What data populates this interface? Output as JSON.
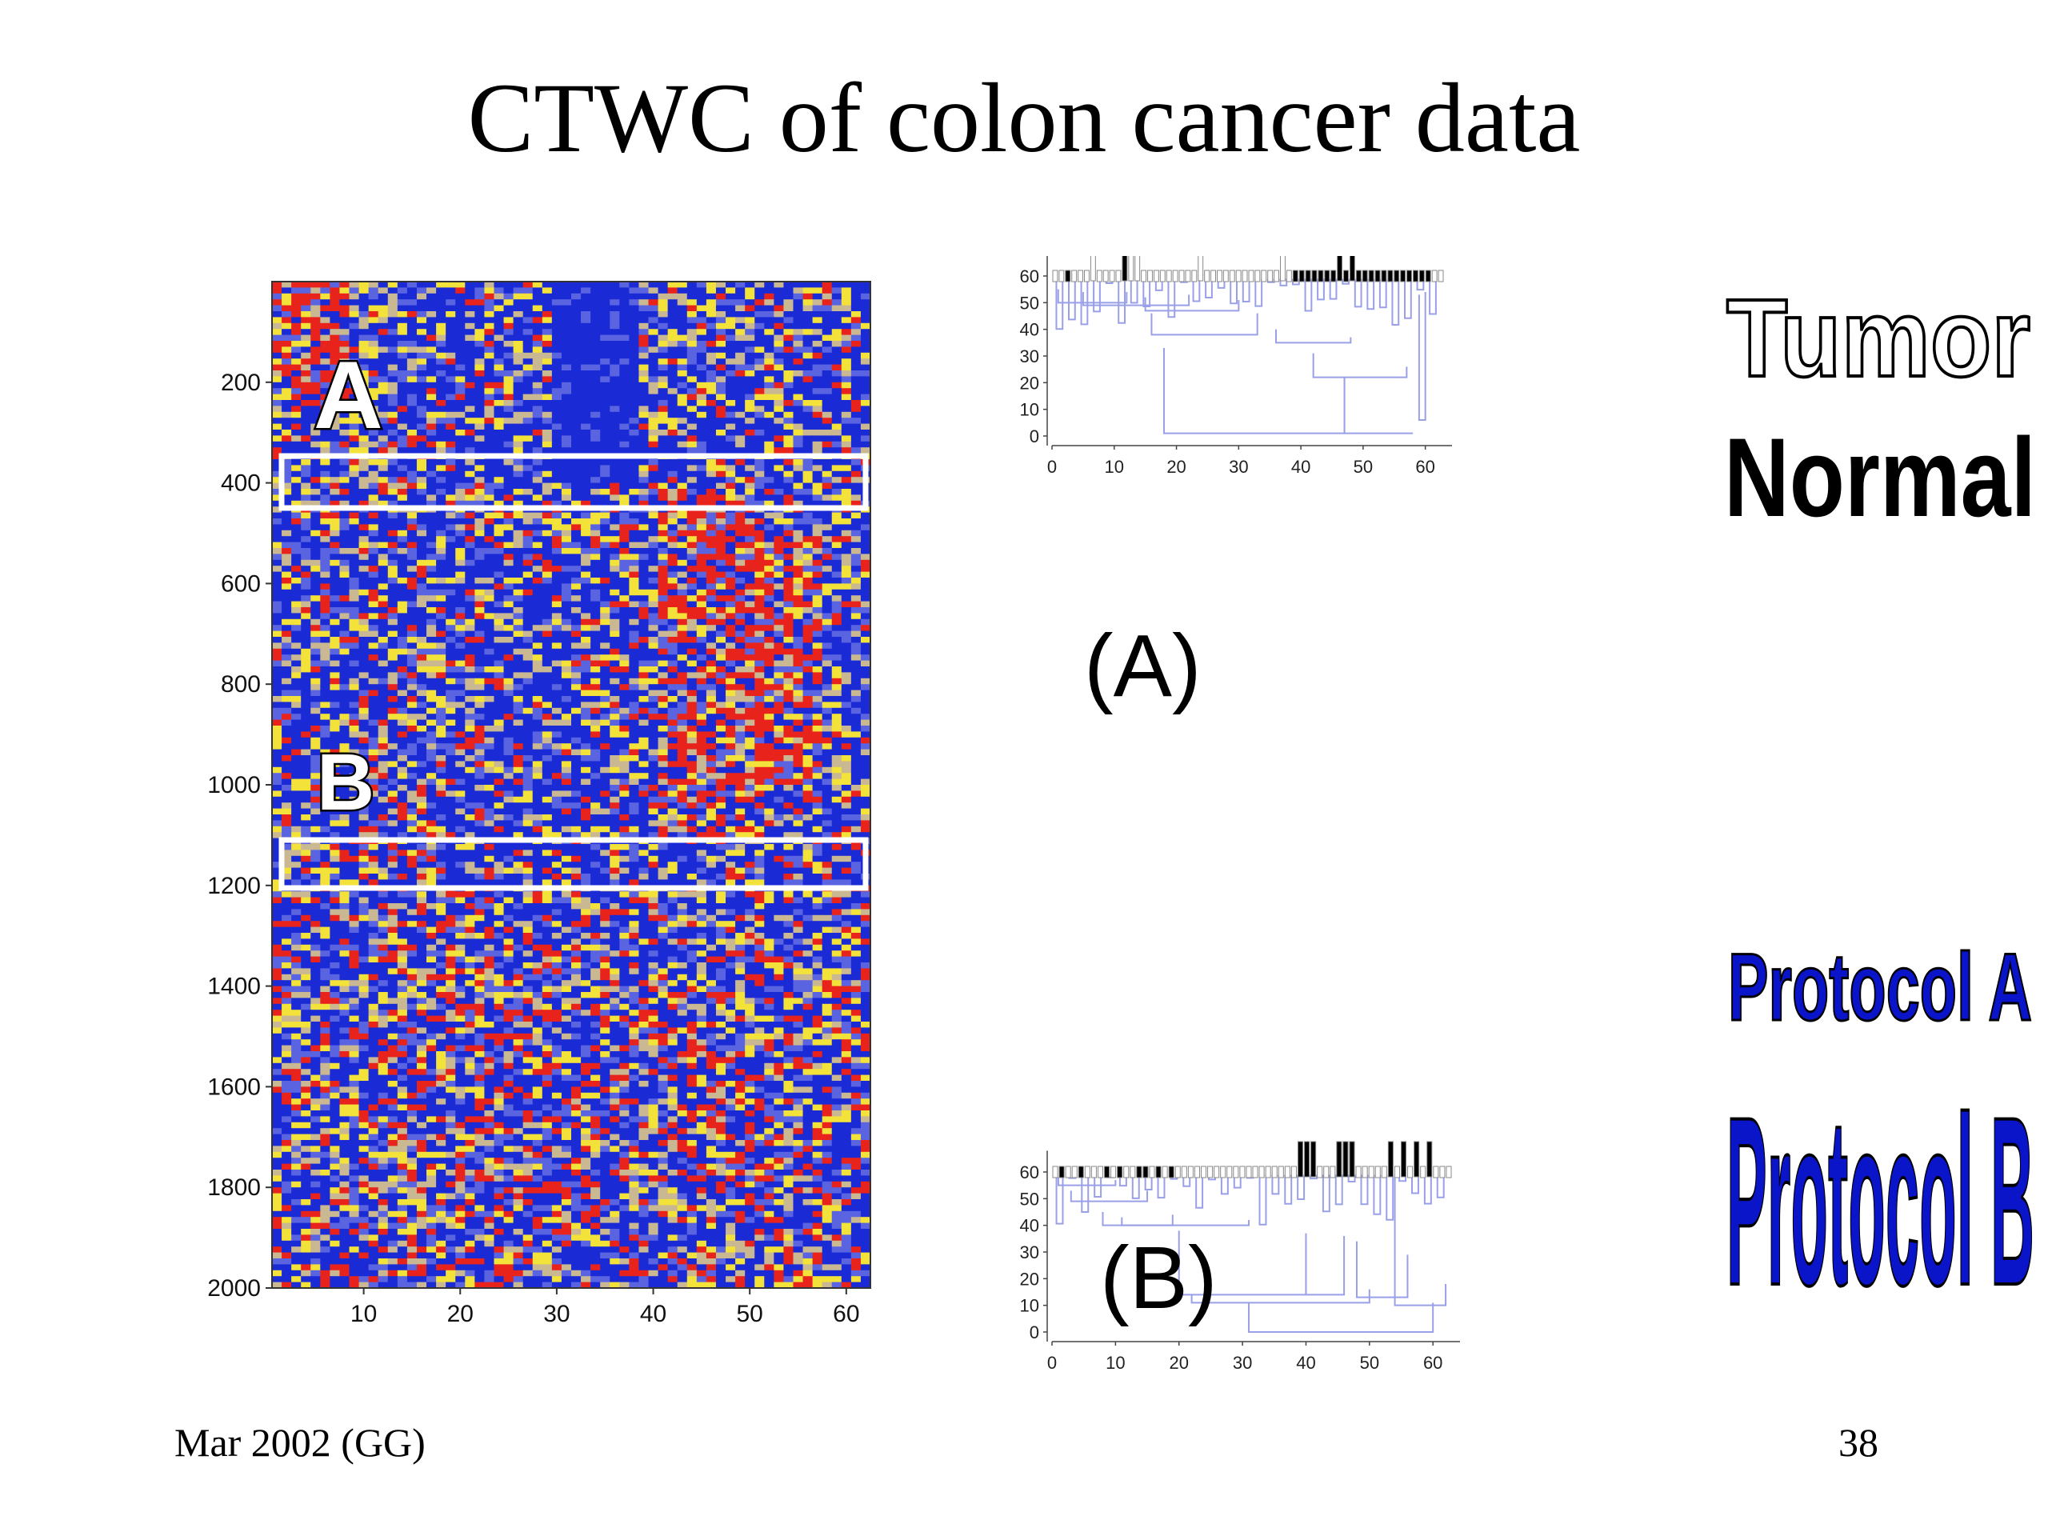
{
  "slide": {
    "title": "CTWC of colon cancer data",
    "footer_left": "Mar 2002 (GG)",
    "page_number": "38"
  },
  "heatmap": {
    "region_labels": [
      "A",
      "B"
    ],
    "colors": {
      "low": "#1a2bd6",
      "mid_low": "#5a64e0",
      "mid": "#c9b892",
      "mid_high": "#f2e23a",
      "high": "#e8231c"
    }
  },
  "dendrogram_a": {
    "panel_label": "(A)"
  },
  "dendrogram_b": {
    "panel_label": "(B)"
  },
  "legend": {
    "tumor": "Tumor",
    "normal": "Normal",
    "protocol_a": "Protocol A",
    "protocol_b": "Protocol B",
    "protocol_color": "#0a14c8"
  },
  "chart_data": [
    {
      "type": "heatmap",
      "xlim": [
        1,
        62
      ],
      "ylim": [
        0,
        2000
      ],
      "x_ticks": [
        "10",
        "20",
        "30",
        "40",
        "50",
        "60"
      ],
      "y_ticks": [
        "200",
        "400",
        "600",
        "800",
        "1000",
        "1200",
        "1400",
        "1600",
        "1800",
        "2000"
      ],
      "highlighted_rows": [
        {
          "label": "A",
          "y_range": [
            355,
            420
          ]
        },
        {
          "label": "B",
          "y_range": [
            1120,
            1195
          ]
        }
      ]
    },
    {
      "type": "dendrogram",
      "panel": "(A)",
      "xlim": [
        0,
        63
      ],
      "ylim": [
        0,
        63
      ],
      "x_ticks": [
        "0",
        "10",
        "20",
        "30",
        "40",
        "50",
        "60"
      ],
      "y_ticks": [
        "0",
        "10",
        "20",
        "30",
        "40",
        "50",
        "60"
      ]
    },
    {
      "type": "dendrogram",
      "panel": "(B)",
      "xlim": [
        0,
        63
      ],
      "ylim": [
        0,
        63
      ],
      "x_ticks": [
        "0",
        "10",
        "20",
        "30",
        "40",
        "50",
        "60"
      ],
      "y_ticks": [
        "0",
        "10",
        "20",
        "30",
        "40",
        "50",
        "60"
      ]
    }
  ]
}
